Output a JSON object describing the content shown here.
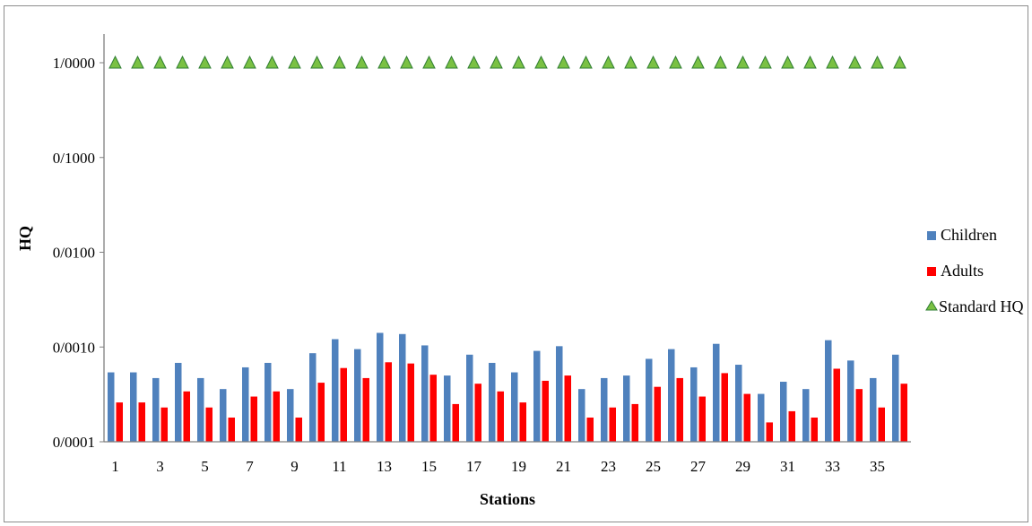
{
  "chart_data": {
    "type": "bar",
    "title": "",
    "xlabel": "Stations",
    "ylabel": "HQ",
    "y_scale": "log",
    "ylim": [
      0.0001,
      1
    ],
    "grid": false,
    "legend_position": "right",
    "x_tick_labels_shown": [
      "1",
      "3",
      "5",
      "7",
      "9",
      "11",
      "13",
      "15",
      "17",
      "19",
      "21",
      "23",
      "25",
      "27",
      "29",
      "31",
      "33",
      "35"
    ],
    "y_ticks": [
      {
        "value": 1,
        "label": "1/0000"
      },
      {
        "value": 0.1,
        "label": "0/1000"
      },
      {
        "value": 0.01,
        "label": "0/0100"
      },
      {
        "value": 0.001,
        "label": "0/0010"
      },
      {
        "value": 0.0001,
        "label": "0/0001"
      }
    ],
    "categories": [
      1,
      2,
      3,
      4,
      5,
      6,
      7,
      8,
      9,
      10,
      11,
      12,
      13,
      14,
      15,
      16,
      17,
      18,
      19,
      20,
      21,
      22,
      23,
      24,
      25,
      26,
      27,
      28,
      29,
      30,
      31,
      32,
      33,
      34,
      35,
      36
    ],
    "series": [
      {
        "name": "Children",
        "type": "bar",
        "color": "#4f81bd",
        "values": [
          0.00054,
          0.00054,
          0.00047,
          0.00068,
          0.00047,
          0.00036,
          0.00061,
          0.00068,
          0.00036,
          0.00086,
          0.00121,
          0.00095,
          0.00141,
          0.00137,
          0.00104,
          0.0005,
          0.00083,
          0.00068,
          0.00054,
          0.00091,
          0.00102,
          0.00036,
          0.00047,
          0.0005,
          0.00075,
          0.00095,
          0.00061,
          0.00108,
          0.00065,
          0.00032,
          0.00043,
          0.00036,
          0.00118,
          0.00072,
          0.00047,
          0.00083
        ]
      },
      {
        "name": "Adults",
        "type": "bar",
        "color": "#ff0000",
        "values": [
          0.00026,
          0.00026,
          0.00023,
          0.00034,
          0.00023,
          0.00018,
          0.0003,
          0.00034,
          0.00018,
          0.00042,
          0.0006,
          0.00047,
          0.00069,
          0.00067,
          0.00051,
          0.00025,
          0.00041,
          0.00034,
          0.00026,
          0.00044,
          0.0005,
          0.00018,
          0.00023,
          0.00025,
          0.00038,
          0.00047,
          0.0003,
          0.00053,
          0.00032,
          0.00016,
          0.00021,
          0.00018,
          0.00059,
          0.00036,
          0.00023,
          0.00041
        ]
      },
      {
        "name": "Standard HQ",
        "type": "marker",
        "marker": "triangle",
        "color": "#7ac143",
        "edge_color": "#2e7d32",
        "values": [
          1,
          1,
          1,
          1,
          1,
          1,
          1,
          1,
          1,
          1,
          1,
          1,
          1,
          1,
          1,
          1,
          1,
          1,
          1,
          1,
          1,
          1,
          1,
          1,
          1,
          1,
          1,
          1,
          1,
          1,
          1,
          1,
          1,
          1,
          1,
          1
        ]
      }
    ]
  }
}
